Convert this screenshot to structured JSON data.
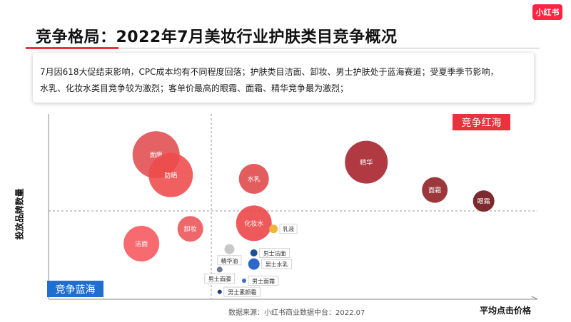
{
  "brand": {
    "logo_text": "小红书",
    "accent": "#ff2442"
  },
  "header": {
    "title": "竞争格局：2022年7月美妆行业护肤类目竞争概况"
  },
  "summary": {
    "line1": "7月因618大促结束影响，CPC成本均有不同程度回落；护肤类目洁面、卸妆、男士护肤处于蓝海赛道；受夏季季节影响，",
    "line2": "水乳、化妆水类目竞争较为激烈；客单价最高的眼霜、面霜、精华竞争最为激烈；"
  },
  "quadrants": {
    "red_label": "竞争红海",
    "blue_label": "竞争蓝海"
  },
  "footer": {
    "source": "数据来源：小红书商业数据中台：2022.07"
  },
  "chart_data": {
    "type": "scatter",
    "title": "",
    "xlabel": "平均点击价格",
    "ylabel": "投放品牌数量",
    "xlim": [
      0,
      100
    ],
    "ylim": [
      0,
      100
    ],
    "grid": false,
    "points": [
      {
        "name": "面膜",
        "x": 22,
        "y": 78,
        "size": 33,
        "color": "#e04b4f",
        "label_pos": "inside"
      },
      {
        "name": "防晒",
        "x": 25,
        "y": 67,
        "size": 31,
        "color": "#ef4a4a",
        "label_pos": "inside"
      },
      {
        "name": "水乳",
        "x": 42,
        "y": 65,
        "size": 21,
        "color": "#df4548",
        "label_pos": "inside"
      },
      {
        "name": "精华",
        "x": 65,
        "y": 74,
        "size": 30,
        "color": "#a61e28",
        "label_pos": "inside"
      },
      {
        "name": "面霜",
        "x": 79,
        "y": 59,
        "size": 18,
        "color": "#8e1d20",
        "label_pos": "inside"
      },
      {
        "name": "眼霜",
        "x": 89,
        "y": 53,
        "size": 15,
        "color": "#6a0c10",
        "label_pos": "inside"
      },
      {
        "name": "化妆水",
        "x": 42,
        "y": 41,
        "size": 25,
        "color": "#ec4244",
        "label_pos": "inside"
      },
      {
        "name": "卸妆",
        "x": 29,
        "y": 38,
        "size": 18,
        "color": "#ec5255",
        "label_pos": "inside"
      },
      {
        "name": "洁面",
        "x": 19,
        "y": 30,
        "size": 25,
        "color": "#f6555b",
        "label_pos": "inside"
      },
      {
        "name": "乳液",
        "x": 46,
        "y": 38,
        "size": 6,
        "color": "#f0b43a",
        "label_pos": "right"
      },
      {
        "name": "精华油",
        "x": 37,
        "y": 27,
        "size": 7,
        "color": "#c8c8c8",
        "label_pos": "below"
      },
      {
        "name": "男士洁面",
        "x": 42,
        "y": 25,
        "size": 5,
        "color": "#1f4e99",
        "label_pos": "right"
      },
      {
        "name": "男士水乳",
        "x": 42,
        "y": 19,
        "size": 8,
        "color": "#2f67c8",
        "label_pos": "right"
      },
      {
        "name": "男士面膜",
        "x": 35,
        "y": 16,
        "size": 4,
        "color": "#6b7a99",
        "label_pos": "below"
      },
      {
        "name": "男士面霜",
        "x": 40,
        "y": 10,
        "size": 3,
        "color": "#3f6ec0",
        "label_pos": "right"
      },
      {
        "name": "男士素颜霜",
        "x": 35,
        "y": 4,
        "size": 3,
        "color": "#1e3e7a",
        "label_pos": "right"
      }
    ]
  }
}
